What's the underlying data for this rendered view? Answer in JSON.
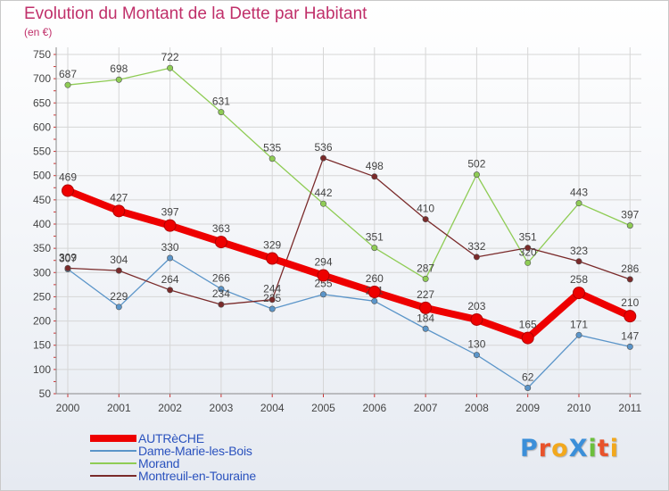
{
  "header": {
    "title": "Evolution du Montant de la Dette par Habitant",
    "subtitle": "(en €)"
  },
  "logo": {
    "text": "ProXiti",
    "colors": [
      "#3b8fd9",
      "#e8532b",
      "#f2a81d",
      "#3b8fd9",
      "#6cbf3c",
      "#e8532b",
      "#f2a81d"
    ]
  },
  "chart_data": {
    "type": "line",
    "title": "Evolution du Montant de la Dette par Habitant",
    "subtitle": "(en €)",
    "xlabel": "",
    "ylabel": "",
    "x": [
      "2000",
      "2001",
      "2002",
      "2003",
      "2004",
      "2005",
      "2006",
      "2007",
      "2008",
      "2009",
      "2010",
      "2011"
    ],
    "ylim": [
      50,
      750
    ],
    "yticks": [
      50,
      100,
      150,
      200,
      250,
      300,
      350,
      400,
      450,
      500,
      550,
      600,
      650,
      700,
      750
    ],
    "grid": true,
    "legend": "bottom-left",
    "series": [
      {
        "name": "Dame-Marie-les-Bois",
        "color": "#5b95c9",
        "values": [
          307,
          229,
          330,
          266,
          225,
          255,
          241,
          184,
          130,
          62,
          171,
          147
        ],
        "labels": [
          "307",
          "229",
          "330",
          "266",
          "225",
          "255",
          "241",
          "184",
          "130",
          "62",
          "171",
          "147"
        ]
      },
      {
        "name": "Morand",
        "color": "#8fcc55",
        "values": [
          687,
          698,
          722,
          631,
          535,
          442,
          351,
          287,
          502,
          320,
          443,
          397
        ],
        "labels": [
          "687",
          "698",
          "722",
          "631",
          "535",
          "442",
          "351",
          "287",
          "502",
          "320",
          "443",
          "397"
        ]
      },
      {
        "name": "Montreuil-en-Touraine",
        "color": "#7a2a2a",
        "values": [
          309,
          304,
          264,
          234,
          244,
          536,
          498,
          410,
          332,
          351,
          323,
          286
        ],
        "labels": [
          "309",
          "304",
          "264",
          "234",
          "244",
          "536",
          "498",
          "410",
          "332",
          "351",
          "323",
          "286"
        ]
      },
      {
        "name": "AUTRèCHE",
        "color": "#ee0000",
        "values": [
          469,
          427,
          397,
          363,
          329,
          294,
          260,
          227,
          203,
          165,
          258,
          210
        ],
        "labels": [
          "469",
          "427",
          "397",
          "363",
          "329",
          "294",
          "260",
          "227",
          "203",
          "165",
          "258",
          "210"
        ]
      }
    ]
  },
  "legend": {
    "items": [
      {
        "label": "AUTRèCHE",
        "color": "#ee0000"
      },
      {
        "label": "Dame-Marie-les-Bois",
        "color": "#5b95c9"
      },
      {
        "label": "Morand",
        "color": "#8fcc55"
      },
      {
        "label": "Montreuil-en-Touraine",
        "color": "#7a2a2a"
      }
    ]
  }
}
